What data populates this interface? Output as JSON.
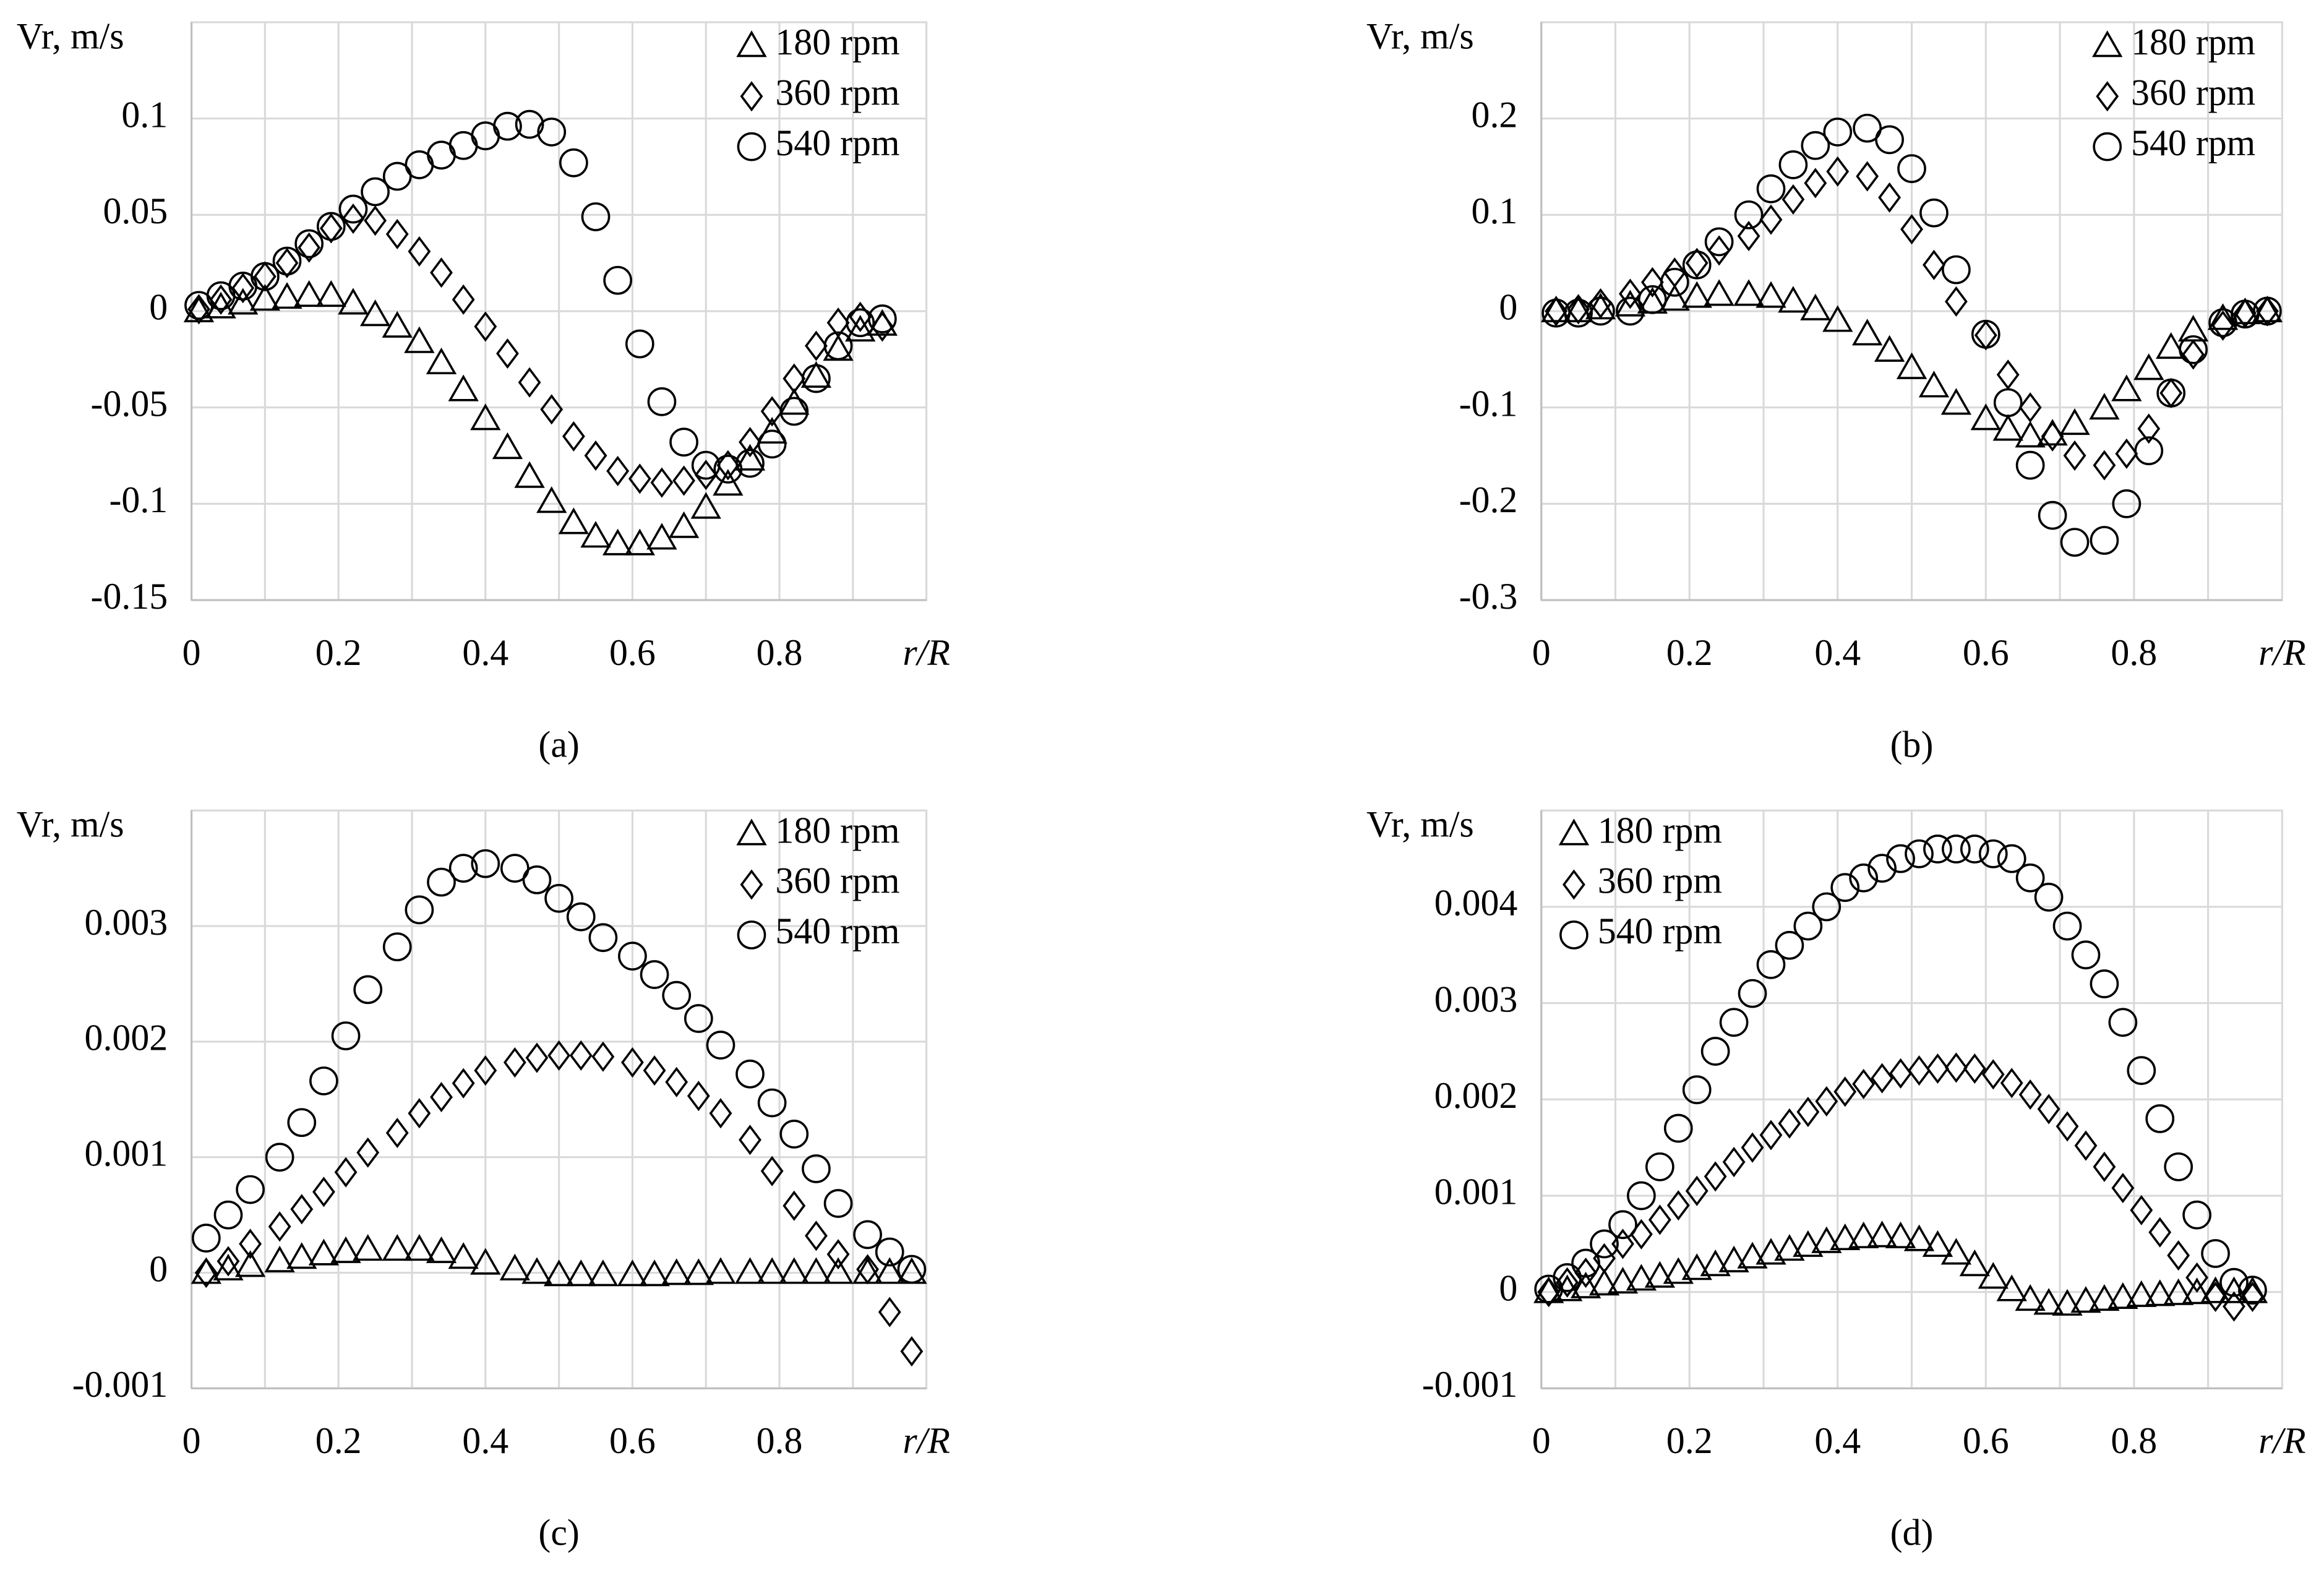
{
  "chart_data": [
    {
      "type": "scatter",
      "caption": "(a)",
      "ylabel": "Vr, m/s",
      "xlabel": "r/R",
      "legend": "upper right",
      "grid": true,
      "xlim": [
        0,
        1
      ],
      "xticks": [
        0,
        0.2,
        0.4,
        0.6,
        0.8
      ],
      "ylim": [
        -0.15,
        0.15
      ],
      "yticks": [
        -0.15,
        -0.1,
        -0.05,
        0,
        0.05,
        0.1
      ],
      "x": [
        0.01,
        0.04,
        0.07,
        0.1,
        0.13,
        0.16,
        0.19,
        0.22,
        0.25,
        0.28,
        0.31,
        0.34,
        0.37,
        0.4,
        0.43,
        0.46,
        0.49,
        0.52,
        0.55,
        0.58,
        0.61,
        0.64,
        0.67,
        0.7,
        0.73,
        0.76,
        0.79,
        0.82,
        0.85,
        0.88,
        0.91,
        0.94
      ],
      "series": [
        {
          "name": "180 rpm",
          "marker": "triangle",
          "color": "#000000",
          "values": [
            0,
            0.002,
            0.004,
            0.006,
            0.007,
            0.008,
            0.008,
            0.004,
            -0.002,
            -0.008,
            -0.016,
            -0.027,
            -0.041,
            -0.056,
            -0.071,
            -0.086,
            -0.099,
            -0.11,
            -0.117,
            -0.121,
            -0.121,
            -0.118,
            -0.112,
            -0.102,
            -0.09,
            -0.077,
            -0.063,
            -0.048,
            -0.034,
            -0.02,
            -0.01,
            -0.007
          ]
        },
        {
          "name": "360 rpm",
          "marker": "diamond",
          "color": "#000000",
          "values": [
            0.001,
            0.006,
            0.012,
            0.018,
            0.025,
            0.033,
            0.043,
            0.048,
            0.047,
            0.04,
            0.031,
            0.02,
            0.006,
            -0.008,
            -0.022,
            -0.037,
            -0.051,
            -0.065,
            -0.075,
            -0.083,
            -0.087,
            -0.089,
            -0.088,
            -0.085,
            -0.08,
            -0.068,
            -0.052,
            -0.035,
            -0.018,
            -0.006,
            -0.003,
            -0.008
          ]
        },
        {
          "name": "540 rpm",
          "marker": "circle",
          "color": "#000000",
          "values": [
            0.003,
            0.008,
            0.013,
            0.018,
            0.026,
            0.035,
            0.044,
            0.053,
            0.062,
            0.07,
            0.076,
            0.081,
            0.086,
            0.091,
            0.096,
            0.097,
            0.093,
            0.077,
            0.049,
            0.016,
            -0.017,
            -0.047,
            -0.068,
            -0.08,
            -0.082,
            -0.079,
            -0.069,
            -0.052,
            -0.035,
            -0.018,
            -0.006,
            -0.004
          ]
        }
      ]
    },
    {
      "type": "scatter",
      "caption": "(b)",
      "ylabel": "Vr, m/s",
      "xlabel": "r/R",
      "legend": "upper right",
      "grid": true,
      "xlim": [
        0,
        1
      ],
      "xticks": [
        0,
        0.2,
        0.4,
        0.6,
        0.8
      ],
      "ylim": [
        -0.3,
        0.3
      ],
      "yticks": [
        -0.3,
        -0.2,
        -0.1,
        0,
        0.1,
        0.2
      ],
      "x": [
        0.02,
        0.05,
        0.08,
        0.12,
        0.15,
        0.18,
        0.21,
        0.24,
        0.28,
        0.31,
        0.34,
        0.37,
        0.4,
        0.44,
        0.47,
        0.5,
        0.53,
        0.56,
        0.6,
        0.63,
        0.66,
        0.69,
        0.72,
        0.76,
        0.79,
        0.82,
        0.85,
        0.88,
        0.92,
        0.95,
        0.98
      ],
      "series": [
        {
          "name": "180 rpm",
          "marker": "triangle",
          "color": "#000000",
          "values": [
            0,
            0,
            0.003,
            0.006,
            0.009,
            0.012,
            0.015,
            0.017,
            0.017,
            0.015,
            0.01,
            0.002,
            -0.01,
            -0.024,
            -0.041,
            -0.059,
            -0.078,
            -0.096,
            -0.112,
            -0.123,
            -0.13,
            -0.128,
            -0.117,
            -0.101,
            -0.082,
            -0.06,
            -0.038,
            -0.02,
            -0.008,
            -0.002,
            0
          ]
        },
        {
          "name": "360 rpm",
          "marker": "diamond",
          "color": "#000000",
          "values": [
            0,
            0.002,
            0.008,
            0.018,
            0.03,
            0.04,
            0.05,
            0.063,
            0.078,
            0.095,
            0.116,
            0.133,
            0.145,
            0.14,
            0.118,
            0.085,
            0.048,
            0.01,
            -0.025,
            -0.066,
            -0.1,
            -0.13,
            -0.15,
            -0.16,
            -0.148,
            -0.122,
            -0.085,
            -0.045,
            -0.015,
            -0.002,
            0
          ]
        },
        {
          "name": "540 rpm",
          "marker": "circle",
          "color": "#000000",
          "values": [
            -0.002,
            -0.002,
            0,
            0,
            0.012,
            0.03,
            0.048,
            0.072,
            0.1,
            0.127,
            0.152,
            0.172,
            0.186,
            0.19,
            0.178,
            0.148,
            0.102,
            0.043,
            -0.024,
            -0.095,
            -0.16,
            -0.212,
            -0.24,
            -0.238,
            -0.2,
            -0.145,
            -0.085,
            -0.04,
            -0.012,
            -0.003,
            0
          ]
        }
      ]
    },
    {
      "type": "scatter",
      "caption": "(c)",
      "ylabel": "Vr, m/s",
      "xlabel": "r/R",
      "legend": "upper right",
      "grid": true,
      "xlim": [
        0,
        1
      ],
      "xticks": [
        0,
        0.2,
        0.4,
        0.6,
        0.8
      ],
      "ylim": [
        -0.001,
        0.004
      ],
      "yticks": [
        -0.001,
        0,
        0.001,
        0.002,
        0.003
      ],
      "x": [
        0.02,
        0.05,
        0.08,
        0.12,
        0.15,
        0.18,
        0.21,
        0.24,
        0.28,
        0.31,
        0.34,
        0.37,
        0.4,
        0.44,
        0.47,
        0.5,
        0.53,
        0.56,
        0.6,
        0.63,
        0.66,
        0.69,
        0.72,
        0.76,
        0.79,
        0.82,
        0.85,
        0.88,
        0.92,
        0.95,
        0.98
      ],
      "series": [
        {
          "name": "180 rpm",
          "marker": "triangle",
          "color": "#000000",
          "values": [
            0,
            3e-05,
            6e-05,
            0.0001,
            0.00013,
            0.00016,
            0.00018,
            0.0002,
            0.0002,
            0.0002,
            0.00018,
            0.00013,
            8e-05,
            3e-05,
            0,
            -2e-05,
            -2e-05,
            -2e-05,
            -2e-05,
            -2e-05,
            -1e-05,
            -1e-05,
            0,
            0,
            0,
            0,
            0,
            0,
            0,
            0,
            0
          ]
        },
        {
          "name": "360 rpm",
          "marker": "diamond",
          "color": "#000000",
          "values": [
            0,
            0.0001,
            0.00025,
            0.0004,
            0.00055,
            0.0007,
            0.00087,
            0.00104,
            0.00121,
            0.00138,
            0.00152,
            0.00164,
            0.00175,
            0.00182,
            0.00186,
            0.00188,
            0.00188,
            0.00187,
            0.00182,
            0.00175,
            0.00165,
            0.00153,
            0.00138,
            0.00115,
            0.00088,
            0.00058,
            0.00032,
            0.00016,
            3e-05,
            -0.00034,
            -0.00068
          ]
        },
        {
          "name": "540 rpm",
          "marker": "circle",
          "color": "#000000",
          "values": [
            0.0003,
            0.0005,
            0.00072,
            0.001,
            0.0013,
            0.00166,
            0.00205,
            0.00245,
            0.00282,
            0.00314,
            0.00338,
            0.0035,
            0.00354,
            0.0035,
            0.0034,
            0.00324,
            0.00308,
            0.0029,
            0.00274,
            0.00258,
            0.0024,
            0.0022,
            0.00197,
            0.00172,
            0.00147,
            0.0012,
            0.0009,
            0.0006,
            0.00033,
            0.00018,
            3e-05
          ]
        }
      ]
    },
    {
      "type": "scatter",
      "caption": "(d)",
      "ylabel": "Vr, m/s",
      "xlabel": "r/R",
      "legend": "upper left",
      "grid": true,
      "xlim": [
        0,
        1
      ],
      "xticks": [
        0,
        0.2,
        0.4,
        0.6,
        0.8
      ],
      "ylim": [
        -0.001,
        0.005
      ],
      "yticks": [
        -0.001,
        0,
        0.001,
        0.002,
        0.003,
        0.004
      ],
      "x": [
        0.01,
        0.035,
        0.06,
        0.085,
        0.11,
        0.135,
        0.16,
        0.185,
        0.21,
        0.235,
        0.26,
        0.285,
        0.31,
        0.335,
        0.36,
        0.385,
        0.41,
        0.435,
        0.46,
        0.485,
        0.51,
        0.535,
        0.56,
        0.585,
        0.61,
        0.635,
        0.66,
        0.685,
        0.71,
        0.735,
        0.76,
        0.785,
        0.81,
        0.835,
        0.86,
        0.885,
        0.91,
        0.935,
        0.96
      ],
      "series": [
        {
          "name": "180 rpm",
          "marker": "triangle",
          "color": "#000000",
          "values": [
            0,
            2e-05,
            5e-05,
            8e-05,
            0.0001,
            0.00013,
            0.00016,
            0.0002,
            0.00024,
            0.00028,
            0.00032,
            0.00036,
            0.0004,
            0.00044,
            0.00048,
            0.00052,
            0.00055,
            0.00057,
            0.00058,
            0.00057,
            0.00054,
            0.00048,
            0.0004,
            0.00028,
            0.00015,
            2e-05,
            -8e-05,
            -0.00012,
            -0.00013,
            -0.0001,
            -8e-05,
            -6e-05,
            -4e-05,
            -3e-05,
            -2e-05,
            -1e-05,
            0,
            0,
            0
          ]
        },
        {
          "name": "360 rpm",
          "marker": "diamond",
          "color": "#000000",
          "values": [
            0,
            0.0001,
            0.0002,
            0.00035,
            0.0005,
            0.0006,
            0.00075,
            0.0009,
            0.00105,
            0.0012,
            0.00135,
            0.0015,
            0.00163,
            0.00175,
            0.00187,
            0.00198,
            0.00208,
            0.00216,
            0.00222,
            0.00227,
            0.0023,
            0.00232,
            0.00233,
            0.00232,
            0.00226,
            0.00217,
            0.00205,
            0.0019,
            0.00172,
            0.00152,
            0.0013,
            0.00108,
            0.00085,
            0.00062,
            0.00038,
            0.00015,
            -5e-05,
            -0.00015,
            -5e-05
          ]
        },
        {
          "name": "540 rpm",
          "marker": "circle",
          "color": "#000000",
          "values": [
            3e-05,
            0.00015,
            0.0003,
            0.0005,
            0.0007,
            0.001,
            0.0013,
            0.0017,
            0.0021,
            0.0025,
            0.0028,
            0.0031,
            0.0034,
            0.0036,
            0.0038,
            0.004,
            0.0042,
            0.0043,
            0.0044,
            0.0045,
            0.00455,
            0.0046,
            0.0046,
            0.0046,
            0.00455,
            0.0045,
            0.0043,
            0.0041,
            0.0038,
            0.0035,
            0.0032,
            0.0028,
            0.0023,
            0.0018,
            0.0013,
            0.0008,
            0.0004,
            0.0001,
            2e-05
          ]
        }
      ]
    }
  ]
}
